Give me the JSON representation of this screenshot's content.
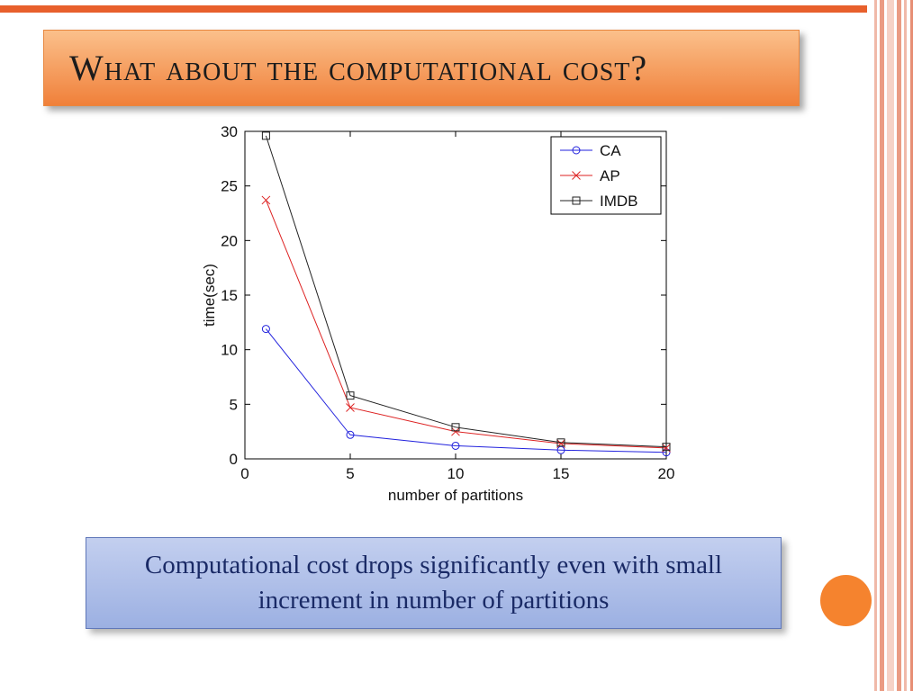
{
  "slide": {
    "title": "What about the computational cost?",
    "caption": "Computational cost drops significantly even with small increment in number of partitions"
  },
  "chart_data": {
    "type": "line",
    "title": "",
    "xlabel": "number of partitions",
    "ylabel": "time(sec)",
    "xlim": [
      0,
      20
    ],
    "ylim": [
      0,
      30
    ],
    "xticks": [
      0,
      5,
      10,
      15,
      20
    ],
    "yticks": [
      0,
      5,
      10,
      15,
      20,
      25,
      30
    ],
    "grid": false,
    "legend_position": "top-right",
    "x": [
      1,
      5,
      10,
      15,
      20
    ],
    "series": [
      {
        "name": "CA",
        "color": "#2222dd",
        "marker": "circle",
        "values": [
          11.9,
          2.2,
          1.2,
          0.8,
          0.6
        ]
      },
      {
        "name": "AP",
        "color": "#dd2222",
        "marker": "x",
        "values": [
          23.7,
          4.7,
          2.5,
          1.4,
          1.0
        ]
      },
      {
        "name": "IMDB",
        "color": "#222222",
        "marker": "square",
        "values": [
          29.6,
          5.8,
          2.9,
          1.5,
          1.1
        ]
      }
    ]
  },
  "colors": {
    "top_bar": "#e8602c",
    "banner_top": "#fbc08b",
    "banner_bottom": "#f0803a",
    "caption_bg_top": "#c3cfef",
    "caption_bg_bottom": "#9cb0e2",
    "caption_border": "#5f77b9",
    "caption_text": "#1a2a66",
    "circle": "#f5832e"
  }
}
